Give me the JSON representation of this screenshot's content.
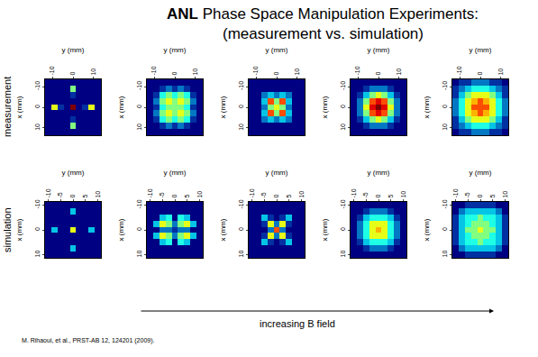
{
  "title": [
    "ANL Phase Space Manipulation Experiments:",
    "(measurement vs. simulation)"
  ],
  "row_labels": [
    "measurement",
    "simulation"
  ],
  "arrow_label": "increasing B field",
  "citation": "M. Rihaoui, et al., PRST-AB 12, 124201 (2009).",
  "chart_data": [
    {
      "type": "heatmap",
      "x_label": "y (mm)",
      "y_label": "x (mm)",
      "x": [
        -12,
        -9,
        -6,
        -3,
        0,
        3,
        6,
        9,
        12
      ],
      "y": [
        -12,
        -9,
        -6,
        -3,
        0,
        3,
        6,
        9,
        12
      ],
      "xlim": [
        -13.5,
        13.5
      ],
      "ylim": [
        -13.5,
        13.5
      ],
      "xticks": [
        -10,
        0,
        10
      ],
      "yticks": [
        -10,
        0,
        10
      ],
      "zlim": [
        0,
        10
      ],
      "z": [
        [
          0,
          0,
          0,
          0,
          0,
          0,
          0,
          0,
          0
        ],
        [
          0,
          0,
          0,
          0,
          5,
          0,
          0,
          0,
          0
        ],
        [
          0,
          0,
          0,
          0,
          1,
          0,
          0,
          0,
          0
        ],
        [
          0,
          0,
          0,
          0,
          0,
          0,
          0,
          0,
          0
        ],
        [
          0,
          6,
          1,
          0,
          10,
          0,
          1,
          6,
          0
        ],
        [
          0,
          0,
          0,
          0,
          0,
          0,
          0,
          0,
          0
        ],
        [
          0,
          0,
          0,
          0,
          1,
          0,
          0,
          0,
          0
        ],
        [
          0,
          0,
          0,
          0,
          5,
          0,
          0,
          0,
          0
        ],
        [
          0,
          0,
          0,
          0,
          0,
          0,
          0,
          0,
          0
        ]
      ]
    },
    {
      "type": "heatmap",
      "x_label": "y (mm)",
      "y_label": "x (mm)",
      "x": [
        -12,
        -9,
        -6,
        -3,
        0,
        3,
        6,
        9,
        12
      ],
      "y": [
        -12,
        -9,
        -6,
        -3,
        0,
        3,
        6,
        9,
        12
      ],
      "xlim": [
        -13.5,
        13.5
      ],
      "ylim": [
        -13.5,
        13.5
      ],
      "xticks": [
        -10,
        0,
        10
      ],
      "yticks": [
        -10,
        0,
        10
      ],
      "zlim": [
        0,
        10
      ],
      "z": [
        [
          0,
          0,
          0,
          0,
          0,
          0,
          0,
          0,
          0
        ],
        [
          0,
          0,
          1,
          2,
          1,
          2,
          1,
          0,
          0
        ],
        [
          0,
          1,
          4,
          5,
          4,
          5,
          4,
          1,
          0
        ],
        [
          0,
          2,
          5,
          6,
          5,
          6,
          5,
          2,
          0
        ],
        [
          0,
          1,
          4,
          5,
          5,
          5,
          4,
          1,
          0
        ],
        [
          0,
          2,
          5,
          6,
          5,
          6,
          5,
          2,
          0
        ],
        [
          0,
          1,
          4,
          5,
          4,
          5,
          4,
          1,
          0
        ],
        [
          0,
          0,
          1,
          2,
          1,
          2,
          1,
          0,
          0
        ],
        [
          0,
          0,
          0,
          0,
          0,
          0,
          0,
          0,
          0
        ]
      ]
    },
    {
      "type": "heatmap",
      "x_label": "y (mm)",
      "y_label": "x (mm)",
      "x": [
        -12,
        -9,
        -6,
        -3,
        0,
        3,
        6,
        9,
        12
      ],
      "y": [
        -12,
        -9,
        -6,
        -3,
        0,
        3,
        6,
        9,
        12
      ],
      "xlim": [
        -13.5,
        13.5
      ],
      "ylim": [
        -13.5,
        13.5
      ],
      "xticks": [
        -10,
        0,
        10
      ],
      "yticks": [
        -10,
        0,
        10
      ],
      "zlim": [
        0,
        10
      ],
      "z": [
        [
          0,
          0,
          0,
          0,
          0,
          0,
          0,
          0,
          0
        ],
        [
          0,
          0,
          0,
          0,
          0,
          0,
          0,
          0,
          0
        ],
        [
          0,
          0,
          2,
          3,
          2,
          3,
          2,
          0,
          0
        ],
        [
          0,
          0,
          3,
          8,
          5,
          8,
          3,
          0,
          0
        ],
        [
          0,
          0,
          2,
          5,
          6,
          5,
          2,
          0,
          0
        ],
        [
          0,
          0,
          3,
          8,
          5,
          8,
          3,
          0,
          0
        ],
        [
          0,
          0,
          2,
          3,
          2,
          3,
          2,
          0,
          0
        ],
        [
          0,
          0,
          0,
          0,
          0,
          0,
          0,
          0,
          0
        ],
        [
          0,
          0,
          0,
          0,
          0,
          0,
          0,
          0,
          0
        ]
      ]
    },
    {
      "type": "heatmap",
      "x_label": "y (mm)",
      "y_label": "x (mm)",
      "x": [
        -12,
        -9,
        -6,
        -3,
        0,
        3,
        6,
        9,
        12
      ],
      "y": [
        -12,
        -9,
        -6,
        -3,
        0,
        3,
        6,
        9,
        12
      ],
      "xlim": [
        -13.5,
        13.5
      ],
      "ylim": [
        -13.5,
        13.5
      ],
      "xticks": [
        -10,
        0,
        10
      ],
      "yticks": [
        -10,
        0,
        10
      ],
      "zlim": [
        0,
        10
      ],
      "z": [
        [
          0,
          0,
          0,
          0,
          0,
          0,
          0,
          0,
          0
        ],
        [
          0,
          0,
          1,
          2,
          2,
          2,
          1,
          0,
          0
        ],
        [
          0,
          1,
          3,
          5,
          6,
          5,
          3,
          1,
          0
        ],
        [
          0,
          2,
          5,
          8,
          9,
          8,
          5,
          2,
          0
        ],
        [
          0,
          2,
          6,
          9,
          10,
          9,
          6,
          2,
          0
        ],
        [
          0,
          2,
          5,
          8,
          9,
          8,
          5,
          2,
          0
        ],
        [
          0,
          1,
          3,
          5,
          6,
          5,
          3,
          1,
          0
        ],
        [
          0,
          0,
          1,
          2,
          2,
          2,
          1,
          0,
          0
        ],
        [
          0,
          0,
          0,
          0,
          0,
          0,
          0,
          0,
          0
        ]
      ]
    },
    {
      "type": "heatmap",
      "x_label": "y (mm)",
      "y_label": "x (mm)",
      "x": [
        -12,
        -9,
        -6,
        -3,
        0,
        3,
        6,
        9,
        12
      ],
      "y": [
        -12,
        -9,
        -6,
        -3,
        0,
        3,
        6,
        9,
        12
      ],
      "xlim": [
        -13.5,
        13.5
      ],
      "ylim": [
        -13.5,
        13.5
      ],
      "xticks": [
        -10,
        0,
        10
      ],
      "yticks": [
        -10,
        0,
        10
      ],
      "zlim": [
        0,
        10
      ],
      "z": [
        [
          0,
          1,
          1,
          2,
          2,
          2,
          1,
          1,
          0
        ],
        [
          1,
          2,
          3,
          4,
          4,
          4,
          3,
          2,
          1
        ],
        [
          1,
          3,
          5,
          6,
          6,
          6,
          5,
          3,
          1
        ],
        [
          2,
          4,
          6,
          7,
          8,
          7,
          6,
          4,
          2
        ],
        [
          2,
          4,
          6,
          8,
          8,
          8,
          6,
          4,
          2
        ],
        [
          2,
          4,
          6,
          7,
          8,
          7,
          6,
          4,
          2
        ],
        [
          1,
          3,
          5,
          6,
          6,
          6,
          5,
          3,
          1
        ],
        [
          1,
          2,
          3,
          4,
          4,
          4,
          3,
          2,
          1
        ],
        [
          0,
          1,
          1,
          2,
          2,
          2,
          1,
          1,
          0
        ]
      ]
    },
    {
      "type": "heatmap",
      "x_label": "y (mm)",
      "y_label": "x (mm)",
      "x": [
        -10,
        -7.5,
        -5,
        -2.5,
        0,
        2.5,
        5,
        7.5,
        10
      ],
      "y": [
        -10,
        -7.5,
        -5,
        -2.5,
        0,
        2.5,
        5,
        7.5,
        10
      ],
      "xlim": [
        -11.25,
        11.25
      ],
      "ylim": [
        -11.25,
        11.25
      ],
      "xticks": [
        -10,
        -5,
        0,
        5,
        10
      ],
      "yticks": [
        -10,
        0,
        10
      ],
      "zlim": [
        0,
        10
      ],
      "z": [
        [
          0,
          0,
          0,
          0,
          0,
          0,
          0,
          0,
          0
        ],
        [
          0,
          0,
          0,
          0,
          3,
          0,
          0,
          0,
          0
        ],
        [
          0,
          0,
          0,
          0,
          0,
          0,
          0,
          0,
          0
        ],
        [
          0,
          0,
          0,
          0,
          0,
          0,
          0,
          0,
          0
        ],
        [
          0,
          3,
          0,
          0,
          6,
          0,
          0,
          3,
          0
        ],
        [
          0,
          0,
          0,
          0,
          0,
          0,
          0,
          0,
          0
        ],
        [
          0,
          0,
          0,
          0,
          0,
          0,
          0,
          0,
          0
        ],
        [
          0,
          0,
          0,
          0,
          3,
          0,
          0,
          0,
          0
        ],
        [
          0,
          0,
          0,
          0,
          0,
          0,
          0,
          0,
          0
        ]
      ]
    },
    {
      "type": "heatmap",
      "x_label": "y (mm)",
      "y_label": "x (mm)",
      "x": [
        -10,
        -7.5,
        -5,
        -2.5,
        0,
        2.5,
        5,
        7.5,
        10
      ],
      "y": [
        -10,
        -7.5,
        -5,
        -2.5,
        0,
        2.5,
        5,
        7.5,
        10
      ],
      "xlim": [
        -11.25,
        11.25
      ],
      "ylim": [
        -11.25,
        11.25
      ],
      "xticks": [
        -10,
        -5,
        0,
        5,
        10
      ],
      "yticks": [
        -10,
        0,
        10
      ],
      "zlim": [
        0,
        10
      ],
      "z": [
        [
          0,
          0,
          0,
          0,
          0,
          0,
          0,
          0,
          0
        ],
        [
          0,
          0,
          0,
          0,
          0,
          0,
          0,
          0,
          0
        ],
        [
          0,
          0,
          3,
          4,
          0,
          4,
          3,
          0,
          0
        ],
        [
          0,
          3,
          6,
          5,
          2,
          5,
          6,
          3,
          0
        ],
        [
          0,
          0,
          2,
          2,
          1,
          2,
          2,
          0,
          0
        ],
        [
          0,
          3,
          6,
          5,
          2,
          5,
          6,
          3,
          0
        ],
        [
          0,
          0,
          3,
          4,
          0,
          4,
          3,
          0,
          0
        ],
        [
          0,
          0,
          0,
          0,
          0,
          0,
          0,
          0,
          0
        ],
        [
          0,
          0,
          0,
          0,
          0,
          0,
          0,
          0,
          0
        ]
      ]
    },
    {
      "type": "heatmap",
      "x_label": "y (mm)",
      "y_label": "x (mm)",
      "x": [
        -10,
        -7.5,
        -5,
        -2.5,
        0,
        2.5,
        5,
        7.5,
        10
      ],
      "y": [
        -10,
        -7.5,
        -5,
        -2.5,
        0,
        2.5,
        5,
        7.5,
        10
      ],
      "xlim": [
        -11.25,
        11.25
      ],
      "ylim": [
        -11.25,
        11.25
      ],
      "xticks": [
        -10,
        -5,
        0,
        5,
        10
      ],
      "yticks": [
        -10,
        0,
        10
      ],
      "zlim": [
        0,
        10
      ],
      "z": [
        [
          0,
          0,
          0,
          0,
          0,
          0,
          0,
          0,
          0
        ],
        [
          0,
          0,
          0,
          0,
          0,
          0,
          0,
          0,
          0
        ],
        [
          0,
          0,
          3,
          1,
          0,
          1,
          3,
          0,
          0
        ],
        [
          0,
          0,
          1,
          6,
          2,
          6,
          1,
          0,
          0
        ],
        [
          0,
          0,
          0,
          2,
          8,
          2,
          0,
          0,
          0
        ],
        [
          0,
          0,
          1,
          6,
          2,
          6,
          1,
          0,
          0
        ],
        [
          0,
          0,
          3,
          1,
          0,
          1,
          3,
          0,
          0
        ],
        [
          0,
          0,
          0,
          0,
          0,
          0,
          0,
          0,
          0
        ],
        [
          0,
          0,
          0,
          0,
          0,
          0,
          0,
          0,
          0
        ]
      ]
    },
    {
      "type": "heatmap",
      "x_label": "y (mm)",
      "y_label": "x (mm)",
      "x": [
        -10,
        -7.5,
        -5,
        -2.5,
        0,
        2.5,
        5,
        7.5,
        10
      ],
      "y": [
        -10,
        -7.5,
        -5,
        -2.5,
        0,
        2.5,
        5,
        7.5,
        10
      ],
      "xlim": [
        -11.25,
        11.25
      ],
      "ylim": [
        -11.25,
        11.25
      ],
      "xticks": [
        -10,
        -5,
        0,
        5,
        10
      ],
      "yticks": [
        -10,
        0,
        10
      ],
      "zlim": [
        0,
        10
      ],
      "z": [
        [
          0,
          0,
          0,
          0,
          0,
          0,
          0,
          0,
          0
        ],
        [
          0,
          0,
          1,
          2,
          2,
          2,
          1,
          0,
          0
        ],
        [
          0,
          1,
          3,
          4,
          4,
          4,
          3,
          1,
          0
        ],
        [
          0,
          2,
          4,
          6,
          6,
          6,
          4,
          2,
          0
        ],
        [
          0,
          2,
          4,
          6,
          7,
          6,
          4,
          2,
          0
        ],
        [
          0,
          2,
          4,
          6,
          6,
          6,
          4,
          2,
          0
        ],
        [
          0,
          1,
          3,
          4,
          4,
          4,
          3,
          1,
          0
        ],
        [
          0,
          0,
          1,
          2,
          2,
          2,
          1,
          0,
          0
        ],
        [
          0,
          0,
          0,
          0,
          0,
          0,
          0,
          0,
          0
        ]
      ]
    },
    {
      "type": "heatmap",
      "x_label": "y (mm)",
      "y_label": "x (mm)",
      "x": [
        -10,
        -7.5,
        -5,
        -2.5,
        0,
        2.5,
        5,
        7.5,
        10
      ],
      "y": [
        -10,
        -7.5,
        -5,
        -2.5,
        0,
        2.5,
        5,
        7.5,
        10
      ],
      "xlim": [
        -11.25,
        11.25
      ],
      "ylim": [
        -11.25,
        11.25
      ],
      "xticks": [
        -10,
        -5,
        0,
        5,
        10
      ],
      "yticks": [
        -10,
        0,
        10
      ],
      "zlim": [
        0,
        10
      ],
      "z": [
        [
          0,
          0,
          1,
          1,
          1,
          1,
          1,
          0,
          0
        ],
        [
          0,
          2,
          3,
          3,
          3,
          3,
          3,
          2,
          0
        ],
        [
          1,
          3,
          4,
          4,
          5,
          4,
          4,
          3,
          1
        ],
        [
          1,
          3,
          4,
          5,
          5,
          5,
          4,
          3,
          1
        ],
        [
          1,
          3,
          5,
          5,
          6,
          5,
          5,
          3,
          1
        ],
        [
          1,
          3,
          4,
          5,
          5,
          5,
          4,
          3,
          1
        ],
        [
          1,
          3,
          4,
          4,
          5,
          4,
          4,
          3,
          1
        ],
        [
          0,
          2,
          3,
          3,
          3,
          3,
          3,
          2,
          0
        ],
        [
          0,
          0,
          1,
          1,
          1,
          1,
          1,
          0,
          0
        ]
      ]
    }
  ]
}
